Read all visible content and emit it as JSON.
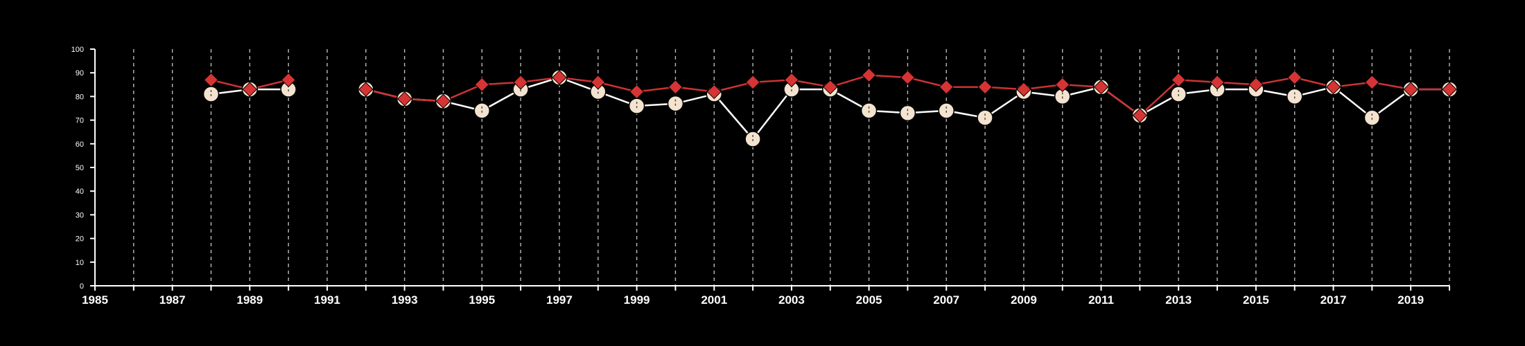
{
  "chart_data": {
    "type": "line",
    "title": "",
    "xlabel": "",
    "ylabel": "",
    "xlim": [
      1985,
      2020
    ],
    "ylim": [
      0,
      100
    ],
    "x_ticks": [
      1985,
      1987,
      1989,
      1991,
      1993,
      1995,
      1997,
      1999,
      2001,
      2003,
      2005,
      2007,
      2009,
      2011,
      2013,
      2015,
      2017,
      2019
    ],
    "y_ticks": [
      0,
      10,
      20,
      30,
      40,
      50,
      60,
      70,
      80,
      90,
      100
    ],
    "grid": "vertical dashed lines at every year",
    "legend": "none",
    "background": "#000000",
    "series": [
      {
        "marker": "circle",
        "color": "#ffffff",
        "marker_fill": "#f3e3cf",
        "points": [
          [
            1988,
            81
          ],
          [
            1989,
            83
          ],
          [
            1990,
            83
          ],
          [
            1992,
            83
          ],
          [
            1993,
            79
          ],
          [
            1994,
            78
          ],
          [
            1995,
            74
          ],
          [
            1996,
            83
          ],
          [
            1997,
            88
          ],
          [
            1998,
            82
          ],
          [
            1999,
            76
          ],
          [
            2000,
            77
          ],
          [
            2001,
            81
          ],
          [
            2002,
            62
          ],
          [
            2003,
            83
          ],
          [
            2004,
            83
          ],
          [
            2005,
            74
          ],
          [
            2006,
            73
          ],
          [
            2007,
            74
          ],
          [
            2008,
            71
          ],
          [
            2009,
            82
          ],
          [
            2010,
            80
          ],
          [
            2011,
            84
          ],
          [
            2012,
            72
          ],
          [
            2013,
            81
          ],
          [
            2014,
            83
          ],
          [
            2015,
            83
          ],
          [
            2016,
            80
          ],
          [
            2017,
            84
          ],
          [
            2018,
            71
          ],
          [
            2019,
            83
          ],
          [
            2020,
            83
          ]
        ]
      },
      {
        "marker": "diamond",
        "color": "#cc3333",
        "marker_fill": "#d63434",
        "points": [
          [
            1988,
            87
          ],
          [
            1989,
            83
          ],
          [
            1990,
            87
          ],
          [
            1992,
            83
          ],
          [
            1993,
            79
          ],
          [
            1994,
            78
          ],
          [
            1995,
            85
          ],
          [
            1996,
            86
          ],
          [
            1997,
            88
          ],
          [
            1998,
            86
          ],
          [
            1999,
            82
          ],
          [
            2000,
            84
          ],
          [
            2001,
            82
          ],
          [
            2002,
            86
          ],
          [
            2003,
            87
          ],
          [
            2004,
            84
          ],
          [
            2005,
            89
          ],
          [
            2006,
            88
          ],
          [
            2007,
            84
          ],
          [
            2008,
            84
          ],
          [
            2009,
            83
          ],
          [
            2010,
            85
          ],
          [
            2011,
            84
          ],
          [
            2012,
            72
          ],
          [
            2013,
            87
          ],
          [
            2014,
            86
          ],
          [
            2015,
            85
          ],
          [
            2016,
            88
          ],
          [
            2017,
            84
          ],
          [
            2018,
            86
          ],
          [
            2019,
            83
          ],
          [
            2020,
            83
          ]
        ]
      }
    ]
  }
}
